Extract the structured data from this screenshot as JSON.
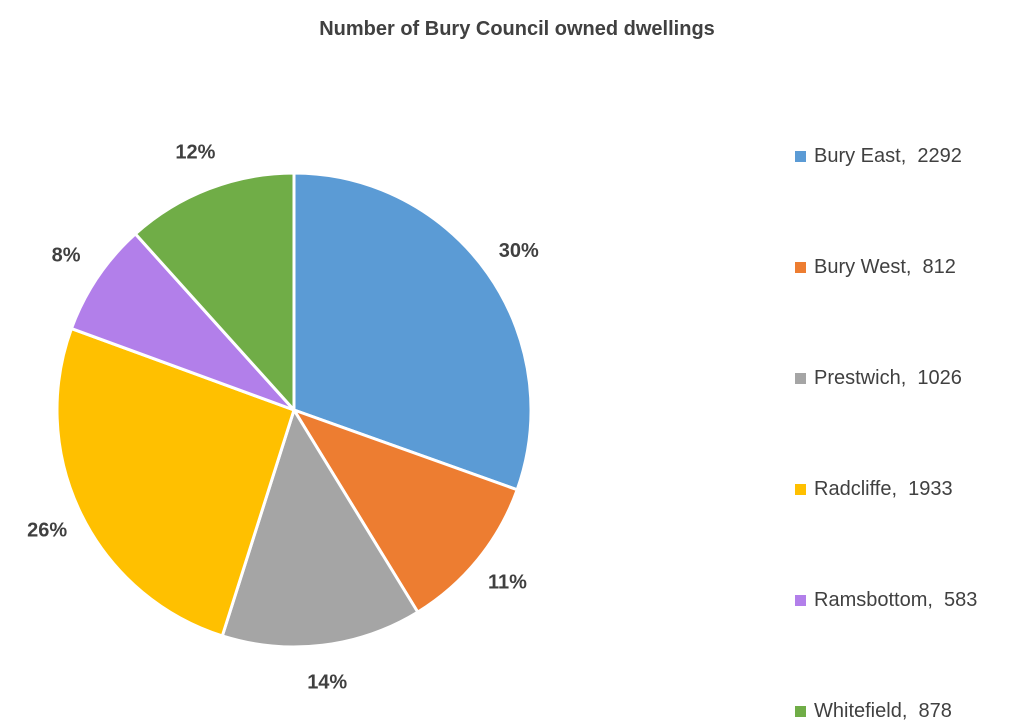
{
  "chart_data": {
    "type": "pie",
    "title": "Number of Bury Council owned dwellings",
    "categories": [
      "Bury East",
      "Bury West",
      "Prestwich",
      "Radcliffe",
      "Ramsbottom",
      "Whitefield"
    ],
    "values": [
      2292,
      812,
      1026,
      1933,
      583,
      878
    ],
    "percent_labels": [
      "30%",
      "11%",
      "14%",
      "26%",
      "8%",
      "12%"
    ],
    "colors": [
      "#5B9BD5",
      "#ED7D31",
      "#A5A5A5",
      "#FFC000",
      "#B27FEA",
      "#70AD47"
    ],
    "legend_position": "right",
    "legend_separator": ",  "
  }
}
